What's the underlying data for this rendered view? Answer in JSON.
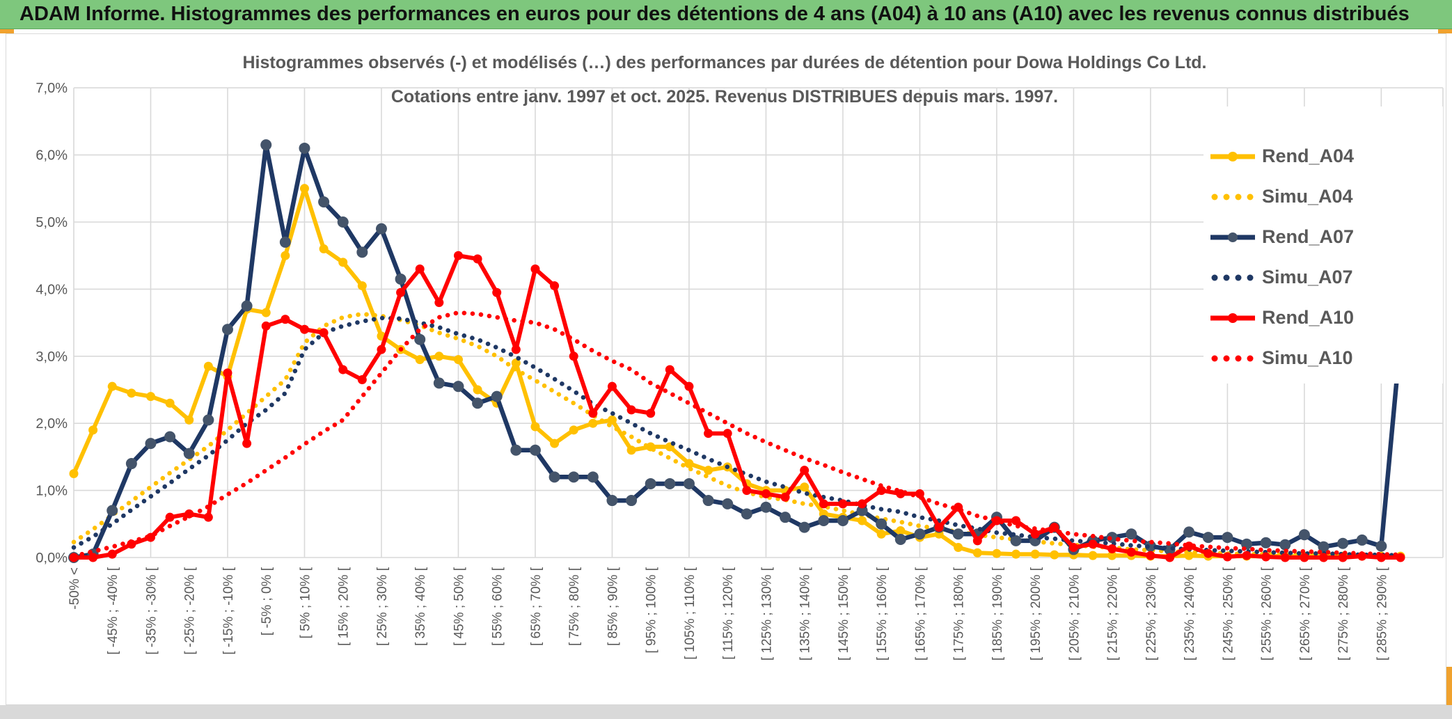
{
  "header": {
    "title": "ADAM Informe. Histogrammes des performances en euros pour des détentions de 4 ans (A04) à 10 ans (A10) avec les revenus connus distribués"
  },
  "colors": {
    "header_green": "#7ec77d",
    "accent_orange": "#f0a22e",
    "grid": "#d9d9d9",
    "text_gray": "#595959",
    "gold": "#ffc000",
    "navy": "#1f3864",
    "navy_marker": "#44546a",
    "red": "#ff0000"
  },
  "chart_data": {
    "type": "line",
    "title_line1": "Histogrammes observés (-) et modélisés (…) des performances par durées de détention pour Dowa Holdings Co Ltd.",
    "title_line2": "Cotations entre janv. 1997 et oct. 2025. Revenus DISTRIBUES depuis mars. 1997.",
    "ylim": [
      0,
      7
    ],
    "ytick_labels": [
      "0,0%",
      "1,0%",
      "2,0%",
      "3,0%",
      "4,0%",
      "5,0%",
      "6,0%",
      "7,0%"
    ],
    "grid": true,
    "legend_position": "right-inside",
    "x_bins_total": 70,
    "x_labels_every_other_bin": true,
    "categories_labeled": [
      "-50% <",
      "[ -45% ; -40% [",
      "[ -35% ; -30% [",
      "[ -25% ; -20% [",
      "[ -15% ; -10% [",
      "[ -5% ; 0% [",
      "[ 5% ; 10% [",
      "[ 15% ; 20% [",
      "[ 25% ; 30% [",
      "[ 35% ; 40% [",
      "[ 45% ; 50% [",
      "[ 55% ; 60% [",
      "[ 65% ; 70% [",
      "[ 75% ; 80% [",
      "[ 85% ; 90% [",
      "[ 95% ; 100% [",
      "[ 105% ; 110% [",
      "[ 115% ; 120% [",
      "[ 125% ; 130% [",
      "[ 135% ; 140% [",
      "[ 145% ; 150% [",
      "[ 155% ; 160% [",
      "[ 165% ; 170% [",
      "[ 175% ; 180% [",
      "[ 185% ; 190% [",
      "[ 195% ; 200% [",
      "[ 205% ; 210% [",
      "[ 215% ; 220% [",
      "[ 225% ; 230% [",
      "[ 235% ; 240% [",
      "[ 245% ; 250% [",
      "[ 255% ; 260% [",
      "[ 265% ; 270% [",
      "[ 275% ; 280% [",
      "[ 285% ; 290% ["
    ],
    "series": [
      {
        "name": "Rend_A04",
        "style": "solid",
        "color": "#ffc000",
        "marker_color": "#ffc000",
        "values": [
          1.25,
          1.9,
          2.55,
          2.45,
          2.4,
          2.3,
          2.05,
          2.85,
          2.7,
          3.7,
          3.65,
          4.5,
          5.5,
          4.6,
          4.4,
          4.05,
          3.3,
          3.1,
          2.95,
          3.0,
          2.95,
          2.5,
          2.3,
          2.9,
          1.95,
          1.7,
          1.9,
          2.0,
          2.05,
          1.6,
          1.65,
          1.65,
          1.4,
          1.3,
          1.35,
          1.1,
          1.0,
          1.0,
          1.05,
          0.65,
          0.6,
          0.55,
          0.35,
          0.4,
          0.3,
          0.35,
          0.15,
          0.07,
          0.06,
          0.05,
          0.05,
          0.04,
          0.04,
          0.03,
          0.03,
          0.03,
          0.02,
          0.02,
          0.03,
          0.02,
          0.02,
          0.02,
          0.02,
          0.02,
          0.02,
          0.02,
          0.02,
          0.02,
          0.02,
          0.02
        ]
      },
      {
        "name": "Simu_A04",
        "style": "dotted",
        "color": "#ffc000",
        "values": [
          0.23,
          0.42,
          0.63,
          0.84,
          1.05,
          1.26,
          1.46,
          1.66,
          1.9,
          2.15,
          2.4,
          2.65,
          3.2,
          3.45,
          3.58,
          3.63,
          3.6,
          3.54,
          3.46,
          3.35,
          3.26,
          3.15,
          3.0,
          2.8,
          2.64,
          2.47,
          2.3,
          2.12,
          1.95,
          1.8,
          1.63,
          1.48,
          1.33,
          1.2,
          1.07,
          0.97,
          0.9,
          0.86,
          0.8,
          0.76,
          0.7,
          0.64,
          0.58,
          0.53,
          0.47,
          0.43,
          0.38,
          0.34,
          0.3,
          0.27,
          0.24,
          0.21,
          0.19,
          0.16,
          0.15,
          0.12,
          0.11,
          0.09,
          0.08,
          0.07,
          0.06,
          0.05,
          0.05,
          0.04,
          0.04,
          0.035,
          0.03,
          0.03,
          0.025,
          0.02
        ]
      },
      {
        "name": "Rend_A07",
        "style": "solid",
        "color": "#1f3864",
        "marker_color": "#44546a",
        "values": [
          0.0,
          0.05,
          0.7,
          1.4,
          1.7,
          1.8,
          1.55,
          2.05,
          3.4,
          3.75,
          6.15,
          4.7,
          6.1,
          5.3,
          5.0,
          4.55,
          4.9,
          4.15,
          3.25,
          2.6,
          2.55,
          2.3,
          2.4,
          1.6,
          1.6,
          1.2,
          1.2,
          1.2,
          0.85,
          0.85,
          1.1,
          1.1,
          1.1,
          0.85,
          0.8,
          0.65,
          0.75,
          0.6,
          0.45,
          0.55,
          0.55,
          0.7,
          0.5,
          0.27,
          0.35,
          0.45,
          0.35,
          0.35,
          0.6,
          0.25,
          0.25,
          0.45,
          0.12,
          0.25,
          0.3,
          0.35,
          0.17,
          0.12,
          0.38,
          0.3,
          0.3,
          0.2,
          0.22,
          0.19,
          0.34,
          0.16,
          0.21,
          0.26,
          0.17,
          3.25
        ]
      },
      {
        "name": "Simu_A07",
        "style": "dotted",
        "color": "#1f3864",
        "values": [
          0.15,
          0.31,
          0.5,
          0.71,
          0.91,
          1.11,
          1.32,
          1.52,
          1.75,
          2.0,
          2.2,
          2.45,
          3.1,
          3.35,
          3.45,
          3.52,
          3.57,
          3.56,
          3.5,
          3.43,
          3.33,
          3.25,
          3.13,
          2.99,
          2.83,
          2.66,
          2.48,
          2.29,
          2.15,
          2.0,
          1.85,
          1.72,
          1.6,
          1.47,
          1.35,
          1.24,
          1.13,
          1.05,
          0.96,
          0.9,
          0.85,
          0.78,
          0.72,
          0.68,
          0.6,
          0.55,
          0.48,
          0.43,
          0.37,
          0.34,
          0.3,
          0.28,
          0.25,
          0.23,
          0.21,
          0.18,
          0.16,
          0.14,
          0.12,
          0.11,
          0.1,
          0.09,
          0.08,
          0.07,
          0.06,
          0.06,
          0.05,
          0.04,
          0.04,
          0.03
        ]
      },
      {
        "name": "Rend_A10",
        "style": "solid",
        "color": "#ff0000",
        "marker_color": "#ff0000",
        "values": [
          0.0,
          0.0,
          0.05,
          0.2,
          0.3,
          0.6,
          0.65,
          0.6,
          2.75,
          1.7,
          3.45,
          3.55,
          3.4,
          3.35,
          2.8,
          2.65,
          3.1,
          3.95,
          4.3,
          3.8,
          4.5,
          4.45,
          3.95,
          3.1,
          4.3,
          4.05,
          3.0,
          2.15,
          2.55,
          2.2,
          2.15,
          2.8,
          2.55,
          1.85,
          1.85,
          1.0,
          0.95,
          0.9,
          1.3,
          0.8,
          0.8,
          0.8,
          1.0,
          0.95,
          0.95,
          0.45,
          0.75,
          0.25,
          0.55,
          0.55,
          0.35,
          0.45,
          0.15,
          0.2,
          0.13,
          0.08,
          0.03,
          0.0,
          0.17,
          0.06,
          0.01,
          0.03,
          0.01,
          0.0,
          0.0,
          0.0,
          0.0,
          0.02,
          0.0,
          0.0
        ]
      },
      {
        "name": "Simu_A10",
        "style": "dotted",
        "color": "#ff0000",
        "values": [
          0.02,
          0.09,
          0.16,
          0.24,
          0.32,
          0.47,
          0.61,
          0.76,
          0.94,
          1.11,
          1.3,
          1.49,
          1.69,
          1.88,
          2.05,
          2.4,
          2.75,
          3.1,
          3.4,
          3.58,
          3.65,
          3.63,
          3.58,
          3.53,
          3.5,
          3.4,
          3.25,
          3.08,
          2.93,
          2.8,
          2.6,
          2.45,
          2.3,
          2.15,
          2.0,
          1.85,
          1.72,
          1.6,
          1.48,
          1.38,
          1.27,
          1.17,
          1.07,
          0.99,
          0.9,
          0.8,
          0.72,
          0.62,
          0.55,
          0.47,
          0.43,
          0.39,
          0.35,
          0.32,
          0.28,
          0.25,
          0.23,
          0.21,
          0.18,
          0.16,
          0.14,
          0.13,
          0.11,
          0.1,
          0.09,
          0.08,
          0.07,
          0.06,
          0.05,
          0.04
        ]
      }
    ]
  }
}
